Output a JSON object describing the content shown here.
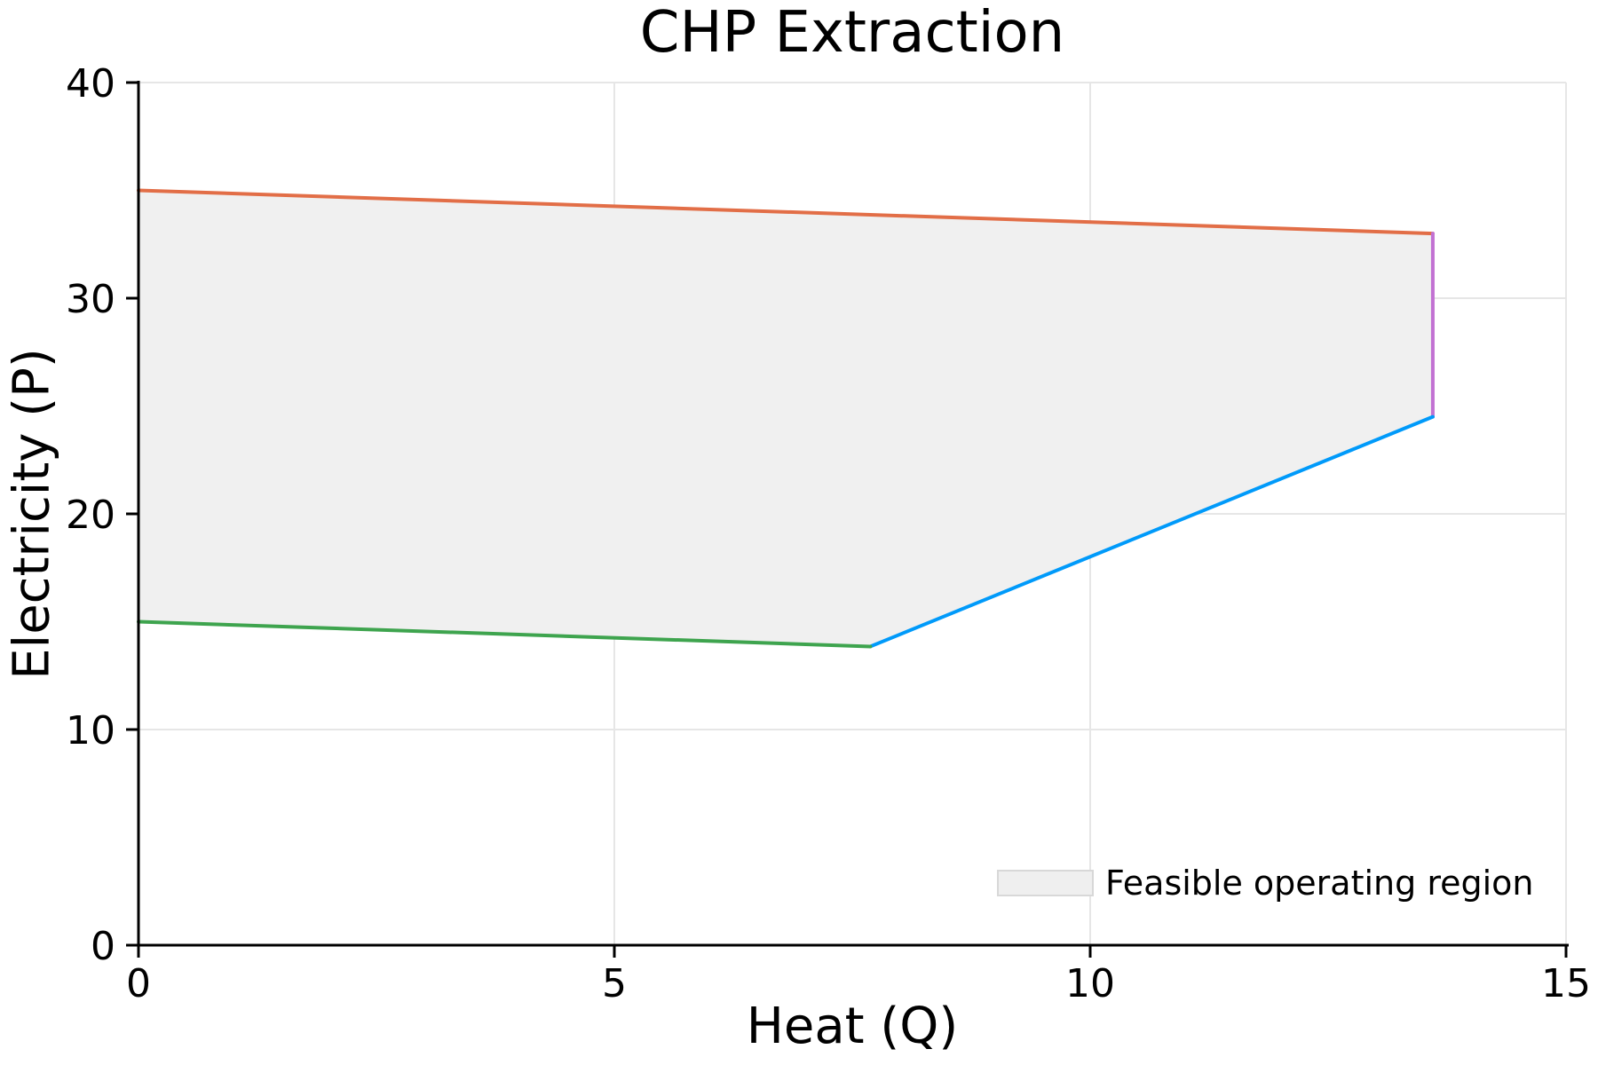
{
  "chart_data": {
    "type": "area",
    "title": "CHP Extraction",
    "xlabel": "Heat (Q)",
    "ylabel": "Electricity (P)",
    "xlim": [
      0,
      15
    ],
    "ylim": [
      0,
      40
    ],
    "xticks": [
      0,
      5,
      10,
      15
    ],
    "yticks": [
      0,
      10,
      20,
      30,
      40
    ],
    "grid": true,
    "legend": {
      "position": "bottom-right",
      "label": "Feasible operating region",
      "swatch_color": "#efefef"
    },
    "region": {
      "name": "feasible-operating-region",
      "fill_color": "#f0f0f0",
      "vertices": [
        [
          0,
          35
        ],
        [
          13.6,
          33
        ],
        [
          13.6,
          24.5
        ],
        [
          7.69,
          13.85
        ],
        [
          0,
          15
        ]
      ]
    },
    "boundaries": [
      {
        "name": "max-power-line",
        "color": "#e26e47",
        "from": [
          0,
          35
        ],
        "to": [
          13.6,
          33
        ]
      },
      {
        "name": "max-heat-line",
        "color": "#c271d2",
        "from": [
          13.6,
          33
        ],
        "to": [
          13.6,
          24.5
        ]
      },
      {
        "name": "backpressure-line",
        "color": "#009afa",
        "from": [
          13.6,
          24.5
        ],
        "to": [
          7.69,
          13.85
        ]
      },
      {
        "name": "min-power-line",
        "color": "#3ea44e",
        "from": [
          7.69,
          13.85
        ],
        "to": [
          0,
          15
        ]
      }
    ],
    "colors": {
      "axis": "#000000",
      "grid": "#e6e6e6",
      "background": "#ffffff"
    }
  }
}
